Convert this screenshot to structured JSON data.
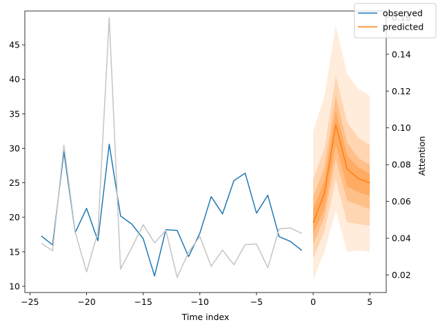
{
  "chart_data": {
    "type": "line",
    "xlabel": "Time index",
    "ylabel": "",
    "y2label": "Attention",
    "xlim": [
      -25.45,
      6.45
    ],
    "ylim": [
      9.1,
      49.9
    ],
    "y2lim": [
      0.0105,
      0.1635
    ],
    "x_ticks": [
      -25,
      -20,
      -15,
      -10,
      -5,
      0,
      5
    ],
    "y_ticks": [
      10,
      15,
      20,
      25,
      30,
      35,
      40,
      45
    ],
    "y2_ticks": [
      0.02,
      0.04,
      0.06,
      0.08,
      0.1,
      0.12,
      0.14,
      0.16
    ],
    "legend": {
      "position": "top-right",
      "entries": [
        {
          "label": "observed",
          "color": "#1f77b4"
        },
        {
          "label": "predicted",
          "color": "#ff7f0e"
        }
      ]
    },
    "series": [
      {
        "name": "observed",
        "color": "#1f77b4",
        "axis": "left",
        "x": [
          -24,
          -23,
          -22,
          -21,
          -20,
          -19,
          -18,
          -17,
          -16,
          -15,
          -14,
          -13,
          -12,
          -11,
          -10,
          -9,
          -8,
          -7,
          -6,
          -5,
          -4,
          -3,
          -2,
          -1
        ],
        "y": [
          17.3,
          16.0,
          29.5,
          17.8,
          21.3,
          16.6,
          30.6,
          20.2,
          19.0,
          16.9,
          11.5,
          18.2,
          18.1,
          14.3,
          17.7,
          23.0,
          20.5,
          25.3,
          26.4,
          20.6,
          23.2,
          17.2,
          16.5,
          15.2
        ]
      },
      {
        "name": "predicted",
        "color": "#ff7f0e",
        "axis": "left",
        "x": [
          0,
          1,
          2,
          3,
          4,
          5
        ],
        "y": [
          19.2,
          23.5,
          33.4,
          27.0,
          25.6,
          25.0
        ]
      },
      {
        "name": "attention",
        "color": "#c4c4c4",
        "axis": "right",
        "x": [
          -24,
          -23,
          -22,
          -21,
          -20,
          -19,
          -18,
          -17,
          -16,
          -15,
          -14,
          -13,
          -12,
          -11,
          -10,
          -9,
          -8,
          -7,
          -6,
          -5,
          -4,
          -3,
          -2,
          -1
        ],
        "y": [
          0.0373,
          0.0332,
          0.0906,
          0.0433,
          0.0217,
          0.0433,
          0.16,
          0.0232,
          0.035,
          0.0474,
          0.0375,
          0.0443,
          0.0187,
          0.0324,
          0.041,
          0.0247,
          0.0336,
          0.0256,
          0.0365,
          0.0369,
          0.024,
          0.0451,
          0.0456,
          0.0426
        ]
      }
    ],
    "bands": [
      {
        "x": [
          0,
          1,
          2,
          3,
          4,
          5
        ],
        "lower": [
          11.0,
          15.0,
          21.0,
          15.0,
          15.2,
          15.0
        ],
        "upper": [
          32.5,
          37.5,
          47.8,
          40.8,
          38.6,
          37.6
        ],
        "opacity": 0.15
      },
      {
        "x": [
          0,
          1,
          2,
          3,
          4,
          5
        ],
        "lower": [
          14.0,
          18.0,
          25.5,
          19.3,
          19.0,
          18.8
        ],
        "upper": [
          25.5,
          30.0,
          40.5,
          33.8,
          31.5,
          30.5
        ],
        "opacity": 0.2
      },
      {
        "x": [
          0,
          1,
          2,
          3,
          4,
          5
        ],
        "lower": [
          16.0,
          20.0,
          28.5,
          22.4,
          21.8,
          21.2
        ],
        "upper": [
          23.0,
          27.3,
          37.6,
          30.8,
          28.6,
          27.6
        ],
        "opacity": 0.25
      },
      {
        "x": [
          0,
          1,
          2,
          3,
          4,
          5
        ],
        "lower": [
          17.5,
          21.3,
          30.5,
          24.5,
          23.6,
          23.1
        ],
        "upper": [
          21.2,
          25.4,
          35.5,
          29.0,
          27.2,
          26.3
        ],
        "opacity": 0.3
      }
    ]
  }
}
